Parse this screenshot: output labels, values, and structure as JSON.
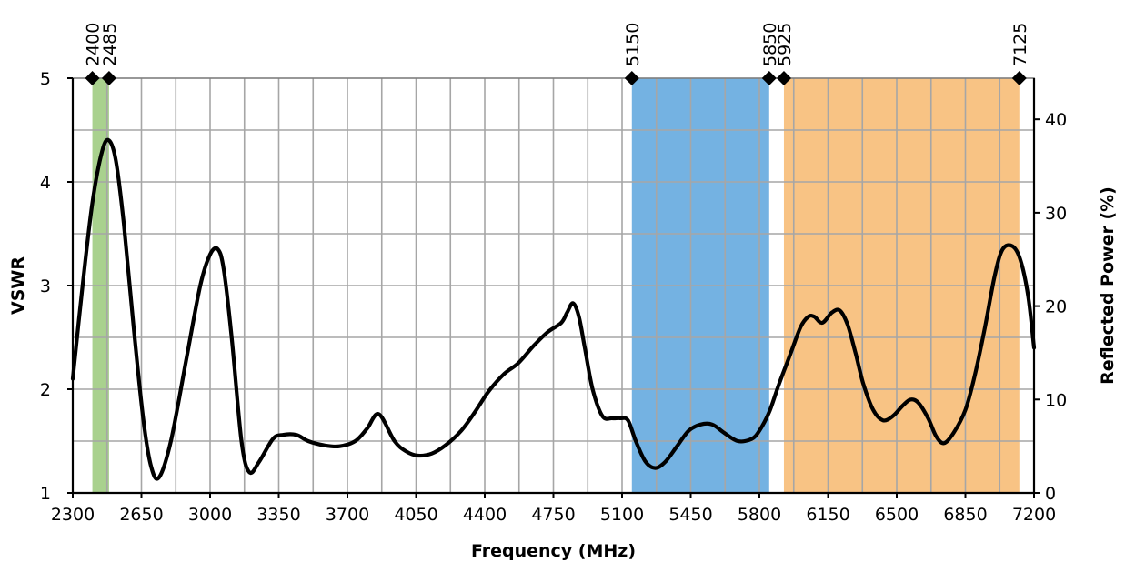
{
  "chart_data": {
    "type": "line",
    "xlabel": "Frequency (MHz)",
    "ylabel": "VSWR",
    "y2label": "Reflected Power (%)",
    "xlim": [
      2300,
      7200
    ],
    "ylim": [
      1,
      5
    ],
    "y2lim": [
      0,
      44.4
    ],
    "x_ticks": [
      2300,
      2650,
      3000,
      3350,
      3700,
      4050,
      4400,
      4750,
      5100,
      5450,
      5800,
      6150,
      6500,
      6850,
      7200
    ],
    "x_minor_step": 175,
    "y_ticks": [
      1,
      2,
      3,
      4,
      5
    ],
    "y_minor_step": 0.5,
    "y2_ticks": [
      0,
      10,
      20,
      30,
      40
    ],
    "grid": true,
    "bands": [
      {
        "start": 2400,
        "end": 2485,
        "color": "#a9d18e"
      },
      {
        "start": 5150,
        "end": 5850,
        "color": "#74b2e2"
      },
      {
        "start": 5925,
        "end": 7125,
        "color": "#f8c384"
      }
    ],
    "band_markers": [
      "2400",
      "2485",
      "5150",
      "5850",
      "5925",
      "7125"
    ],
    "series": [
      {
        "color": "#000000",
        "x": [
          2300,
          2350,
          2400,
          2450,
          2485,
          2520,
          2560,
          2610,
          2660,
          2700,
          2740,
          2800,
          2880,
          2950,
          3000,
          3040,
          3070,
          3110,
          3160,
          3200,
          3250,
          3320,
          3370,
          3440,
          3500,
          3580,
          3660,
          3740,
          3800,
          3860,
          3940,
          4000,
          4060,
          4130,
          4200,
          4280,
          4350,
          4420,
          4500,
          4570,
          4650,
          4720,
          4790,
          4820,
          4850,
          4880,
          4910,
          4950,
          5000,
          5050,
          5090,
          5130,
          5170,
          5220,
          5270,
          5320,
          5380,
          5440,
          5500,
          5560,
          5620,
          5690,
          5760,
          5800,
          5850,
          5900,
          5960,
          6010,
          6050,
          6080,
          6120,
          6170,
          6210,
          6250,
          6290,
          6330,
          6380,
          6430,
          6480,
          6530,
          6570,
          6610,
          6660,
          6700,
          6740,
          6790,
          6850,
          6900,
          6950,
          7000,
          7040,
          7090,
          7130,
          7170,
          7200
        ],
        "values": [
          2.1,
          3.0,
          3.8,
          4.3,
          4.4,
          4.2,
          3.6,
          2.6,
          1.7,
          1.25,
          1.15,
          1.5,
          2.3,
          3.0,
          3.3,
          3.35,
          3.15,
          2.5,
          1.5,
          1.2,
          1.3,
          1.52,
          1.56,
          1.56,
          1.5,
          1.46,
          1.45,
          1.5,
          1.62,
          1.76,
          1.5,
          1.4,
          1.36,
          1.38,
          1.46,
          1.6,
          1.78,
          1.98,
          2.15,
          2.25,
          2.42,
          2.55,
          2.64,
          2.74,
          2.83,
          2.7,
          2.4,
          2.0,
          1.74,
          1.72,
          1.72,
          1.7,
          1.5,
          1.3,
          1.24,
          1.3,
          1.45,
          1.6,
          1.66,
          1.66,
          1.58,
          1.5,
          1.52,
          1.6,
          1.78,
          2.05,
          2.35,
          2.6,
          2.7,
          2.7,
          2.64,
          2.74,
          2.76,
          2.62,
          2.35,
          2.05,
          1.8,
          1.7,
          1.74,
          1.84,
          1.9,
          1.87,
          1.72,
          1.55,
          1.48,
          1.58,
          1.8,
          2.15,
          2.6,
          3.1,
          3.35,
          3.38,
          3.25,
          2.9,
          2.4
        ]
      }
    ]
  }
}
